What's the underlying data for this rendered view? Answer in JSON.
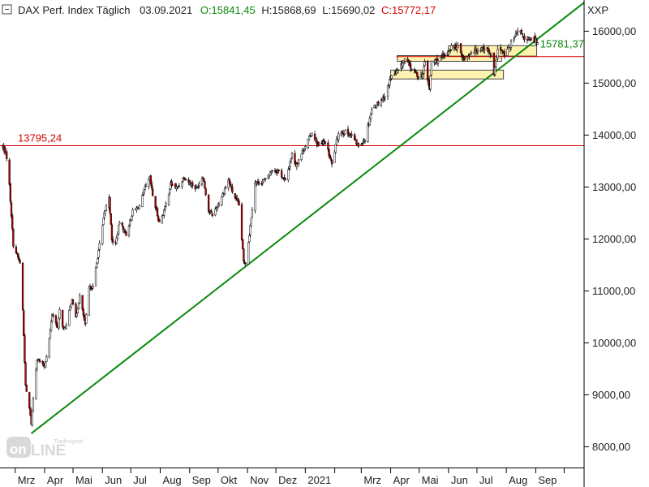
{
  "header": {
    "instrument": "DAX Perf. Index Täglich",
    "date": "03.09.2021",
    "open": "O:15841,45",
    "high": "H:15868,69",
    "low": "L:15690,02",
    "close": "C:15772,17",
    "symbol": "XXP"
  },
  "watermark": {
    "brand": "Tradesignal",
    "line1": "on",
    "line2": "LINE"
  },
  "colors": {
    "up": "#ffffff",
    "down": "#c00000",
    "wick": "#000000",
    "trend_line": "#0a8a0a",
    "support_line": "#d40000",
    "zone_fill": "#fff2b0",
    "zone_stroke": "#444444",
    "open_text": "#0a8a0a",
    "close_text": "#d40000"
  },
  "chart_data": {
    "type": "candlestick",
    "title": "DAX Perf. Index Täglich",
    "y_axis": {
      "ticks": [
        8000,
        9000,
        10000,
        11000,
        12000,
        13000,
        14000,
        15000,
        16000
      ],
      "tick_labels": [
        "8000,00",
        "9000,00",
        "10000,00",
        "11000,00",
        "12000,00",
        "13000,00",
        "14000,00",
        "15000,00",
        "16000,00"
      ],
      "ylim": [
        7600,
        16600
      ],
      "position": "right"
    },
    "x_axis": {
      "labels": [
        "Mrz",
        "Apr",
        "Mai",
        "Jun",
        "Jul",
        "Aug",
        "Sep",
        "Okt",
        "Nov",
        "Dez",
        "2021",
        "Mrz",
        "Apr",
        "Mai",
        "Jun",
        "Jul",
        "Aug",
        "Sep"
      ],
      "label_dates": [
        "2020-03-01",
        "2020-04-01",
        "2020-05-01",
        "2020-06-01",
        "2020-07-01",
        "2020-08-01",
        "2020-09-01",
        "2020-10-01",
        "2020-11-01",
        "2020-12-01",
        "2021-01-01",
        "2021-03-01",
        "2021-04-01",
        "2021-05-01",
        "2021-06-01",
        "2021-07-01",
        "2021-08-01",
        "2021-09-01"
      ],
      "range": [
        "2020-02-14",
        "2021-10-22"
      ]
    },
    "price_path": [
      [
        "2020-02-17",
        13780
      ],
      [
        "2020-02-21",
        13580
      ],
      [
        "2020-02-24",
        13030
      ],
      [
        "2020-02-28",
        11890
      ],
      [
        "2020-03-06",
        11540
      ],
      [
        "2020-03-09",
        10630
      ],
      [
        "2020-03-12",
        9160
      ],
      [
        "2020-03-16",
        8742
      ],
      [
        "2020-03-18",
        8442
      ],
      [
        "2020-03-20",
        8929
      ],
      [
        "2020-03-24",
        9700
      ],
      [
        "2020-03-27",
        9633
      ],
      [
        "2020-04-01",
        9544
      ],
      [
        "2020-04-06",
        10076
      ],
      [
        "2020-04-09",
        10564
      ],
      [
        "2020-04-15",
        10280
      ],
      [
        "2020-04-17",
        10625
      ],
      [
        "2020-04-21",
        10249
      ],
      [
        "2020-04-24",
        10336
      ],
      [
        "2020-04-30",
        10862
      ],
      [
        "2020-05-04",
        10467
      ],
      [
        "2020-05-08",
        10904
      ],
      [
        "2020-05-14",
        10337
      ],
      [
        "2020-05-18",
        11058
      ],
      [
        "2020-05-22",
        11074
      ],
      [
        "2020-05-27",
        11657
      ],
      [
        "2020-06-03",
        12487
      ],
      [
        "2020-06-08",
        12820
      ],
      [
        "2020-06-11",
        11970
      ],
      [
        "2020-06-15",
        11911
      ],
      [
        "2020-06-19",
        12331
      ],
      [
        "2020-06-26",
        12089
      ],
      [
        "2020-07-03",
        12528
      ],
      [
        "2020-07-10",
        12633
      ],
      [
        "2020-07-15",
        12930
      ],
      [
        "2020-07-21",
        13171
      ],
      [
        "2020-07-24",
        12838
      ],
      [
        "2020-07-31",
        12313
      ],
      [
        "2020-08-06",
        12591
      ],
      [
        "2020-08-12",
        13058
      ],
      [
        "2020-08-19",
        12977
      ],
      [
        "2020-08-26",
        13190
      ],
      [
        "2020-09-03",
        13057
      ],
      [
        "2020-09-08",
        12968
      ],
      [
        "2020-09-15",
        13217
      ],
      [
        "2020-09-21",
        12542
      ],
      [
        "2020-09-25",
        12469
      ],
      [
        "2020-10-02",
        12689
      ],
      [
        "2020-10-12",
        13138
      ],
      [
        "2020-10-16",
        12908
      ],
      [
        "2020-10-23",
        12645
      ],
      [
        "2020-10-28",
        11560
      ],
      [
        "2020-10-30",
        11556
      ],
      [
        "2020-11-03",
        12089
      ],
      [
        "2020-11-09",
        13096
      ],
      [
        "2020-11-13",
        13076
      ],
      [
        "2020-11-20",
        13137
      ],
      [
        "2020-11-27",
        13335
      ],
      [
        "2020-12-04",
        13298
      ],
      [
        "2020-12-11",
        13114
      ],
      [
        "2020-12-18",
        13630
      ],
      [
        "2020-12-22",
        13418
      ],
      [
        "2020-12-30",
        13719
      ],
      [
        "2021-01-08",
        14050
      ],
      [
        "2021-01-15",
        13787
      ],
      [
        "2021-01-22",
        13873
      ],
      [
        "2021-01-29",
        13432
      ],
      [
        "2021-02-05",
        14056
      ],
      [
        "2021-02-12",
        14050
      ],
      [
        "2021-02-19",
        13993
      ],
      [
        "2021-02-26",
        13786
      ],
      [
        "2021-03-05",
        13920
      ],
      [
        "2021-03-12",
        14502
      ],
      [
        "2021-03-19",
        14621
      ],
      [
        "2021-03-26",
        14748
      ],
      [
        "2021-04-01",
        15107
      ],
      [
        "2021-04-09",
        15234
      ],
      [
        "2021-04-16",
        15459
      ],
      [
        "2021-04-23",
        15279
      ],
      [
        "2021-04-30",
        15136
      ],
      [
        "2021-05-05",
        15170
      ],
      [
        "2021-05-07",
        15400
      ],
      [
        "2021-05-12",
        14851
      ],
      [
        "2021-05-14",
        15416
      ],
      [
        "2021-05-21",
        15437
      ],
      [
        "2021-05-28",
        15519
      ],
      [
        "2021-06-04",
        15692
      ],
      [
        "2021-06-11",
        15693
      ],
      [
        "2021-06-18",
        15448
      ],
      [
        "2021-06-25",
        15607
      ],
      [
        "2021-07-02",
        15650
      ],
      [
        "2021-07-09",
        15688
      ],
      [
        "2021-07-16",
        15540
      ],
      [
        "2021-07-19",
        15133
      ],
      [
        "2021-07-23",
        15669
      ],
      [
        "2021-07-30",
        15544
      ],
      [
        "2021-08-06",
        15761
      ],
      [
        "2021-08-13",
        15977
      ],
      [
        "2021-08-18",
        15965
      ],
      [
        "2021-08-20",
        15808
      ],
      [
        "2021-08-27",
        15851
      ],
      [
        "2021-09-01",
        15824
      ],
      [
        "2021-09-03",
        15781
      ]
    ],
    "annotations": [
      {
        "type": "horizontal_line",
        "value": 13795.24,
        "label": "13795,24",
        "color": "#d40000"
      },
      {
        "type": "horizontal_line",
        "value": 15510,
        "start": "2021-04-07",
        "color": "#d40000"
      },
      {
        "type": "trend_line",
        "from": [
          "2020-03-18",
          8255
        ],
        "to": [
          "2021-10-22",
          16550
        ],
        "label": "15781,37",
        "label_date": "2021-09-03",
        "label_value": 15781.37,
        "color": "#0a8a0a"
      },
      {
        "type": "zone",
        "from": "2021-04-01",
        "to": "2021-07-29",
        "low": 15080,
        "high": 15250
      },
      {
        "type": "zone",
        "from": "2021-04-08",
        "to": "2021-07-27",
        "low": 15420,
        "high": 15530
      },
      {
        "type": "zone",
        "from": "2021-06-01",
        "to": "2021-09-02",
        "low": 15520,
        "high": 15720
      }
    ]
  }
}
